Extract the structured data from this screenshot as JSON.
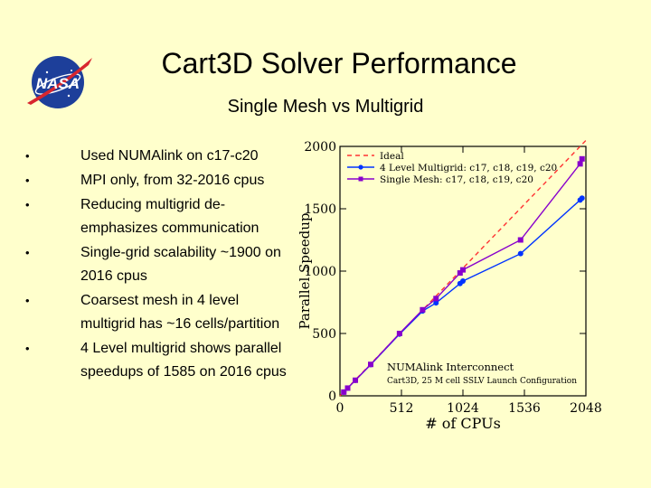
{
  "slide": {
    "title": "Cart3D Solver Performance",
    "subtitle": "Single Mesh vs Multigrid",
    "logo_text": "NASA",
    "bullets": [
      "Used NUMAlink on c17-c20",
      "MPI only, from 32-2016 cpus",
      "Reducing multigrid de-emphasizes communication",
      "Single-grid scalability ~1900 on 2016 cpus",
      "Coarsest mesh in 4 level multigrid has ~16 cells/partition",
      "4 Level multigrid shows parallel speedups of 1585 on 2016 cpus"
    ],
    "bullet_symbol": "•"
  },
  "chart_data": {
    "type": "line",
    "xlabel": "# of CPUs",
    "ylabel": "Parallel Speedup",
    "xlim": [
      0,
      2048
    ],
    "ylim": [
      0,
      2000
    ],
    "xticks": [
      0,
      512,
      1024,
      1536,
      2048
    ],
    "yticks": [
      0,
      500,
      1000,
      1500,
      2000
    ],
    "annotation": "NUMAlink Interconnect",
    "annotation_sub": "Cart3D, 25 M cell SSLV Launch Configuration",
    "legend_position": "top-left",
    "series": [
      {
        "name": "Ideal",
        "style": "dashed",
        "color": "#ff3333",
        "x": [
          0,
          2048
        ],
        "y": [
          0,
          2048
        ]
      },
      {
        "name": "4 Level Multigrid: c17, c18, c19, c20",
        "style": "solid",
        "marker": "circle",
        "color": "#0033ff",
        "x": [
          32,
          64,
          128,
          256,
          496,
          688,
          800,
          1000,
          1024,
          1504,
          2000,
          2016
        ],
        "y": [
          30,
          62,
          124,
          250,
          495,
          680,
          745,
          900,
          920,
          1140,
          1570,
          1585
        ]
      },
      {
        "name": "Single Mesh: c17, c18, c19, c20",
        "style": "solid",
        "marker": "square",
        "color": "#8800cc",
        "x": [
          32,
          64,
          128,
          256,
          496,
          688,
          800,
          1000,
          1024,
          1504,
          2000,
          2016
        ],
        "y": [
          30,
          62,
          125,
          252,
          500,
          690,
          780,
          985,
          1010,
          1250,
          1860,
          1900
        ]
      }
    ]
  }
}
